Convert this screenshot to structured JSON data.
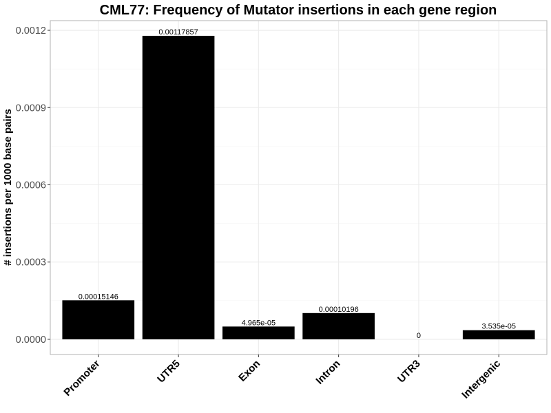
{
  "chart_data": {
    "type": "bar",
    "title": "CML77: Frequency of Mutator insertions in each gene region",
    "xlabel": "",
    "ylabel": "# insertions per 1000 base pairs",
    "categories": [
      "Promoter",
      "UTR5",
      "Exon",
      "Intron",
      "UTR3",
      "Intergenic"
    ],
    "values": [
      0.00015146,
      0.00117857,
      4.965e-05,
      0.00010196,
      0,
      3.535e-05
    ],
    "value_labels": [
      "0.00015146",
      "0.00117857",
      "4.965e-05",
      "0.00010196",
      "0",
      "3.535e-05"
    ],
    "yticks": [
      0.0,
      0.0003,
      0.0006,
      0.0009,
      0.0012
    ],
    "ytick_labels": [
      "0.0000",
      "0.0003",
      "0.0006",
      "0.0009",
      "0.0012"
    ],
    "ylim": [
      -5.893e-05,
      0.0012375
    ],
    "bar_color": "#000000",
    "grid": true,
    "legend": "none"
  }
}
